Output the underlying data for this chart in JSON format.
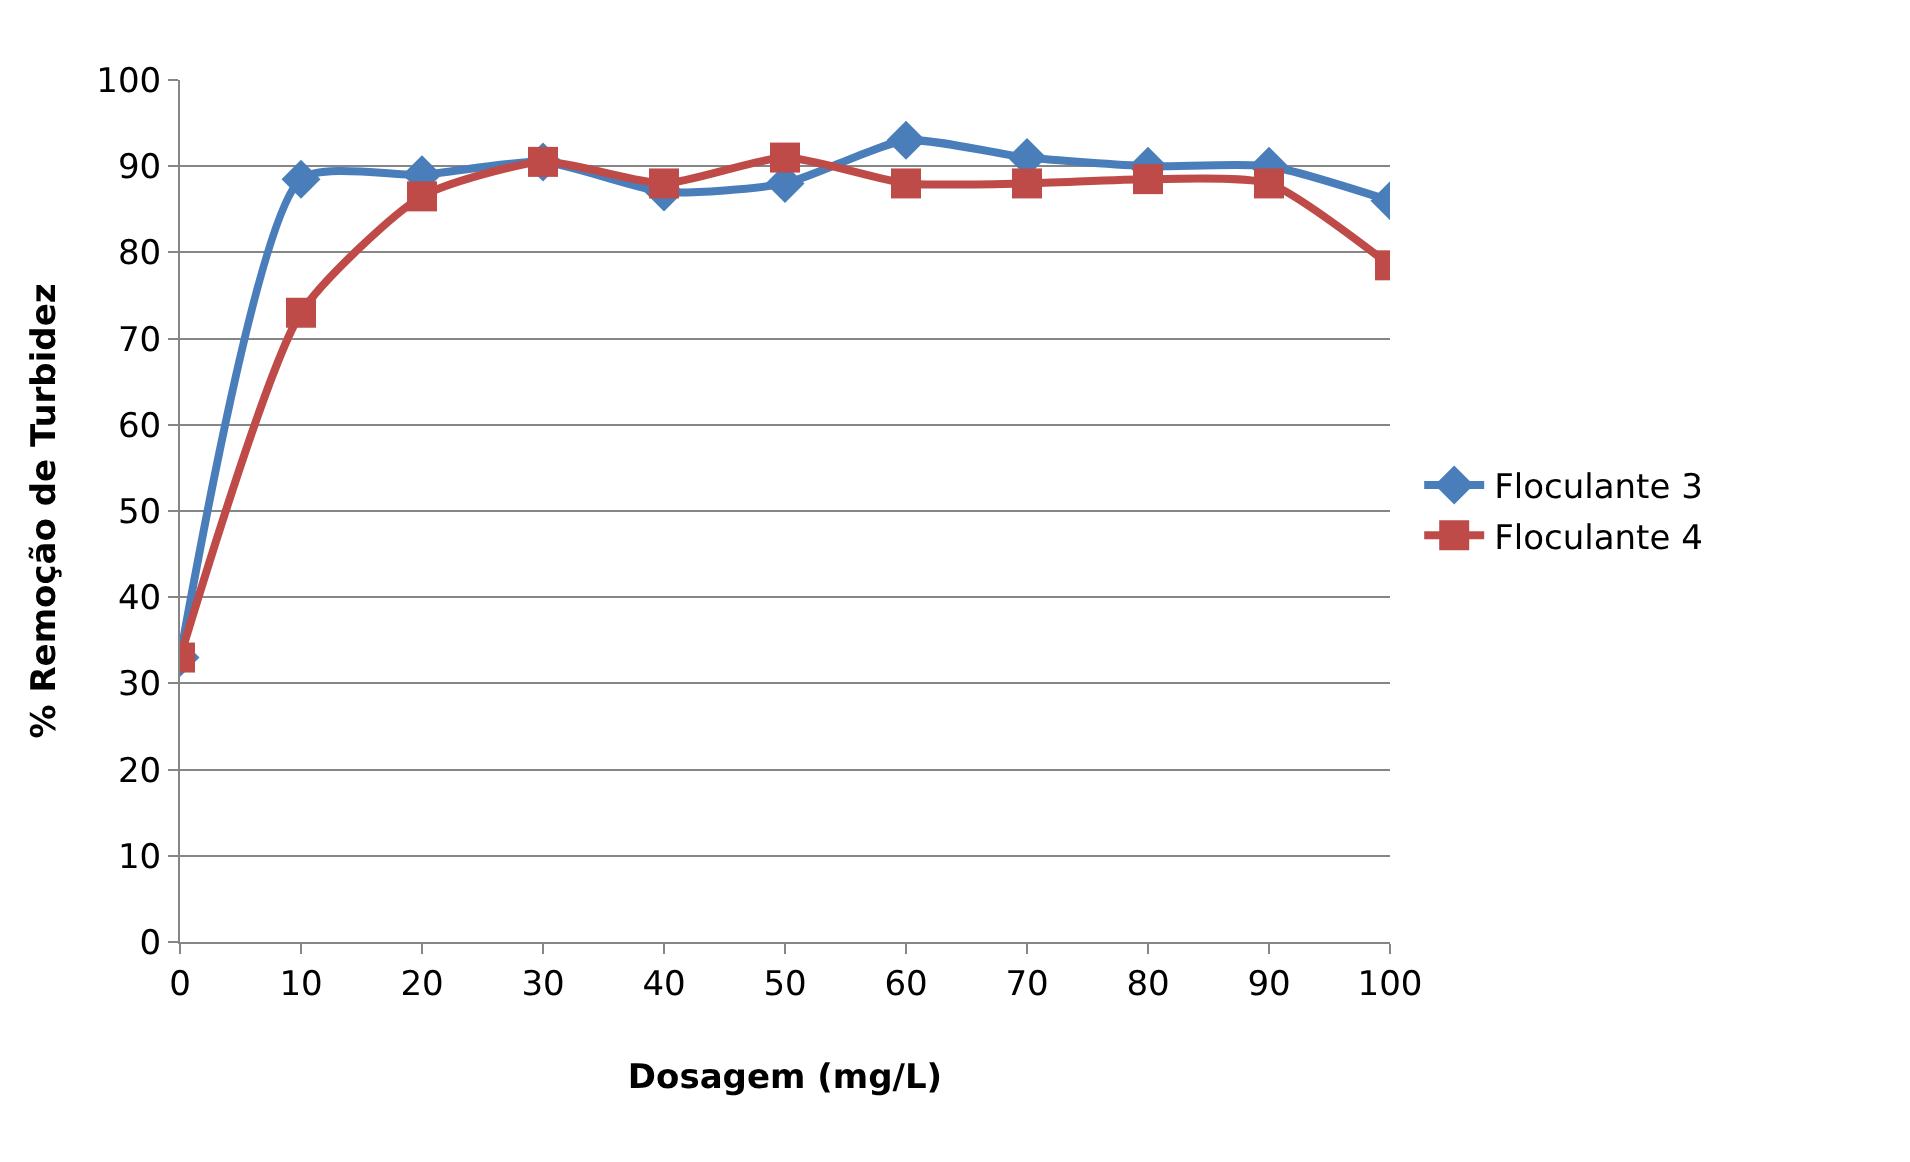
{
  "chart_data": {
    "type": "line",
    "xlabel": "Dosagem (mg/L)",
    "ylabel": "% Remoção de Turbidez",
    "x": [
      0,
      10,
      20,
      30,
      40,
      50,
      60,
      70,
      80,
      90,
      100
    ],
    "series": [
      {
        "name": "Floculante 3",
        "color": "#4a7ebb",
        "marker": "diamond",
        "values": [
          33,
          88.5,
          89,
          90.5,
          87,
          88,
          93,
          91,
          90,
          90,
          86
        ]
      },
      {
        "name": "Floculante 4",
        "color": "#be4b48",
        "marker": "square",
        "values": [
          33,
          73,
          86.5,
          90.5,
          88,
          91,
          88,
          88,
          88.5,
          88,
          78.5
        ]
      }
    ],
    "xlim": [
      0,
      100
    ],
    "xticks": [
      0,
      10,
      20,
      30,
      40,
      50,
      60,
      70,
      80,
      90,
      100
    ],
    "ylim": [
      0,
      100
    ],
    "yticks": [
      0,
      10,
      20,
      30,
      40,
      50,
      60,
      70,
      80,
      90,
      100
    ],
    "grid": "y",
    "legend": "right",
    "line_style": "solid"
  }
}
